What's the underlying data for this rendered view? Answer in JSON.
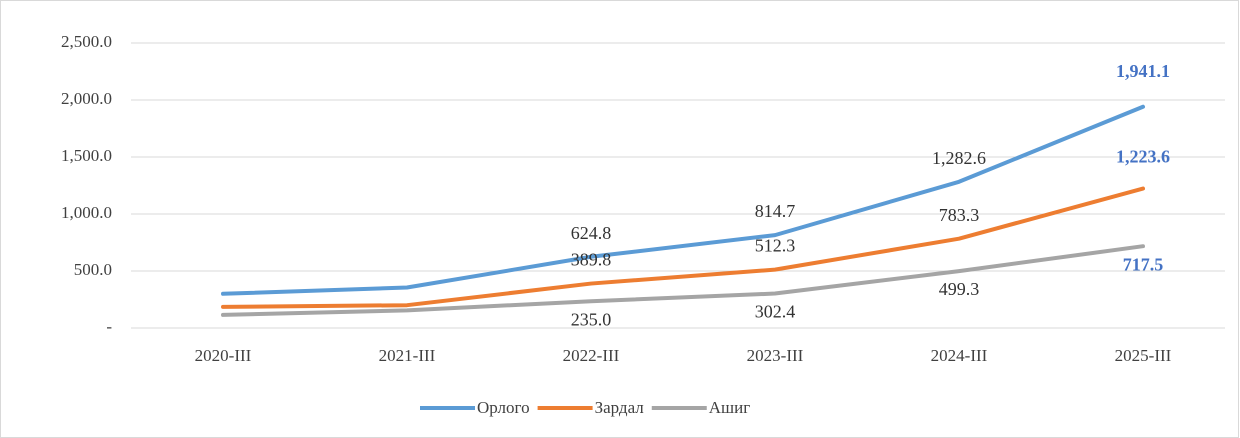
{
  "chart_data": {
    "type": "line",
    "categories": [
      "2020-III",
      "2021-III",
      "2022-III",
      "2023-III",
      "2024-III",
      "2025-III"
    ],
    "series": [
      {
        "name": "Орлого",
        "color": "#5b9bd5",
        "values": [
          300,
          355,
          624.8,
          814.7,
          1282.6,
          1941.1
        ],
        "value_labels": [
          null,
          null,
          "624.8",
          "814.7",
          "1,282.6",
          "1,941.1"
        ]
      },
      {
        "name": "Зардал",
        "color": "#ed7d31",
        "values": [
          185,
          200,
          389.8,
          512.3,
          783.3,
          1223.6
        ],
        "value_labels": [
          null,
          null,
          "389.8",
          "512.3",
          "783.3",
          "1,223.6"
        ]
      },
      {
        "name": "Ашиг",
        "color": "#a5a5a5",
        "values": [
          115,
          155,
          235.0,
          302.4,
          499.3,
          717.5
        ],
        "value_labels": [
          null,
          null,
          "235.0",
          "302.4",
          "499.3",
          "717.5"
        ]
      }
    ],
    "ylim": [
      0,
      2500
    ],
    "yticks": [
      {
        "value": 0,
        "label": "-"
      },
      {
        "value": 500,
        "label": "500.0"
      },
      {
        "value": 1000,
        "label": "1,000.0"
      },
      {
        "value": 1500,
        "label": "1,500.0"
      },
      {
        "value": 2000,
        "label": "2,000.0"
      },
      {
        "value": 2500,
        "label": "2,500.0"
      }
    ],
    "grid": true,
    "legend": "bottom"
  }
}
